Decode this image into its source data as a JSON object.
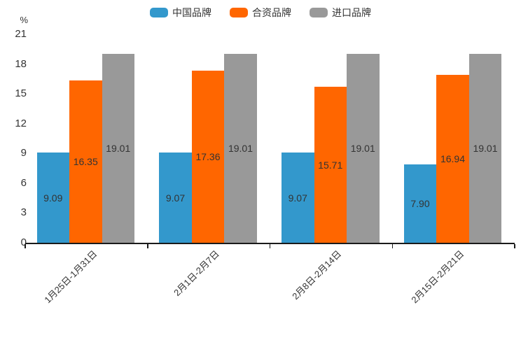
{
  "chart_data": {
    "type": "bar",
    "title": "",
    "unit_label": "%",
    "categories": [
      "1月25日-1月31日",
      "2月1日-2月7日",
      "2月8日-2月14日",
      "2月15日-2月21日"
    ],
    "series": [
      {
        "name": "中国品牌",
        "color": "#3398cc",
        "values": [
          9.09,
          9.07,
          9.07,
          7.9
        ],
        "labels": [
          "9.09",
          "9.07",
          "9.07",
          "7.90"
        ]
      },
      {
        "name": "合资品牌",
        "color": "#ff6600",
        "values": [
          16.35,
          17.36,
          15.71,
          16.94
        ],
        "labels": [
          "16.35",
          "17.36",
          "15.71",
          "16.94"
        ]
      },
      {
        "name": "进口品牌",
        "color": "#999999",
        "values": [
          19.01,
          19.01,
          19.01,
          19.01
        ],
        "labels": [
          "19.01",
          "19.01",
          "19.01",
          "19.01"
        ]
      }
    ],
    "ylim": [
      0,
      21
    ],
    "yticks": [
      0,
      3,
      6,
      9,
      12,
      15,
      18,
      21
    ],
    "grid": false,
    "legend_position": "top",
    "value_label_position": "inside-center",
    "value_label_color": "#333333",
    "axis_color": "#1a1a1a",
    "x_label_rotation_deg": 45
  }
}
